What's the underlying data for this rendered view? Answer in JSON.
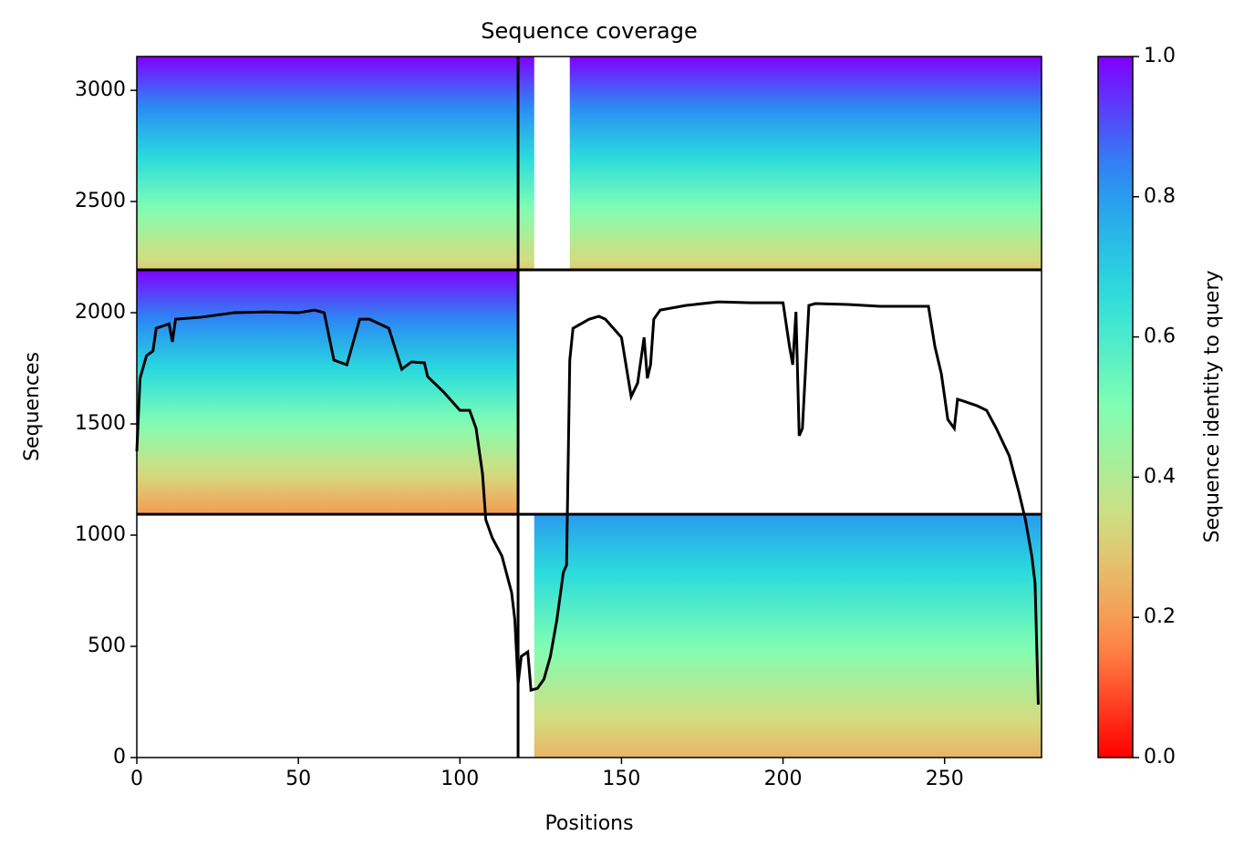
{
  "chart_data": {
    "type": "coverage",
    "title": "Sequence coverage",
    "x_label": "Positions",
    "y_label": "Sequences",
    "colorbar_label": "Sequence identity to query",
    "xlim": [
      0,
      280
    ],
    "xticks": [
      0,
      50,
      100,
      150,
      200,
      250
    ],
    "ylim": [
      0,
      3152
    ],
    "yticks": [
      0,
      500,
      1000,
      1500,
      2000,
      2500,
      3000
    ],
    "clim": [
      0,
      1
    ],
    "cticks": [
      {
        "value": 0,
        "label": "0.0"
      },
      0.2,
      0.4,
      0.6,
      0.8,
      {
        "value": 1,
        "label": "1.0"
      }
    ],
    "colorscale": [
      "#ff0000",
      "#ff8c4a",
      "#d4dc7f",
      "#80feb3",
      "#2adcdc",
      "#2a8cf4",
      "#8000ff"
    ],
    "blocks": [
      {
        "x": [
          0,
          123
        ],
        "y": [
          2193,
          3152
        ],
        "identity": [
          0.3,
          1.0
        ]
      },
      {
        "x": [
          134,
          280
        ],
        "y": [
          2193,
          3152
        ],
        "identity": [
          0.3,
          1.0
        ]
      },
      {
        "x": [
          0,
          118
        ],
        "y": [
          1094,
          2193
        ],
        "identity": [
          0.2,
          1.0
        ]
      },
      {
        "x": [
          123,
          280
        ],
        "y": [
          0,
          1094
        ],
        "identity": [
          0.25,
          0.8
        ]
      }
    ],
    "boundaries_x": [
      118
    ],
    "boundaries_y": [
      1094,
      2193
    ],
    "line_color": "#000000",
    "x": [
      0,
      1,
      3,
      5,
      6,
      10,
      11,
      12,
      20,
      30,
      40,
      50,
      55,
      58,
      61,
      65,
      67,
      69,
      72,
      78,
      82,
      85,
      89,
      90,
      95,
      100,
      103,
      105,
      107,
      108,
      110,
      113,
      116,
      117,
      118,
      119,
      121,
      122,
      124,
      126,
      128,
      130,
      132,
      133,
      134,
      135,
      140,
      143,
      145,
      150,
      153,
      155,
      157,
      158,
      159,
      160,
      162,
      170,
      180,
      190,
      200,
      202,
      203,
      204,
      205,
      206,
      208,
      210,
      220,
      230,
      245,
      247,
      249,
      251,
      253,
      254,
      256,
      260,
      263,
      266,
      270,
      273,
      275,
      277,
      278,
      279
    ],
    "values": [
      1377,
      1705,
      1807,
      1828,
      1930,
      1950,
      1869,
      1971,
      1980,
      2000,
      2004,
      2000,
      2012,
      2000,
      1787,
      1766,
      1869,
      1971,
      1971,
      1930,
      1746,
      1779,
      1775,
      1713,
      1643,
      1561,
      1561,
      1480,
      1275,
      1070,
      988,
      906,
      742,
      619,
      332,
      455,
      475,
      303,
      311,
      352,
      455,
      619,
      832,
      865,
      1787,
      1930,
      1971,
      1984,
      1971,
      1889,
      1623,
      1684,
      1889,
      1705,
      1766,
      1971,
      2012,
      2033,
      2049,
      2045,
      2045,
      1848,
      1766,
      2004,
      1447,
      1480,
      2033,
      2041,
      2037,
      2029,
      2029,
      1848,
      1725,
      1520,
      1480,
      1611,
      1602,
      1582,
      1561,
      1480,
      1357,
      1193,
      1070,
      906,
      783,
      238
    ]
  }
}
